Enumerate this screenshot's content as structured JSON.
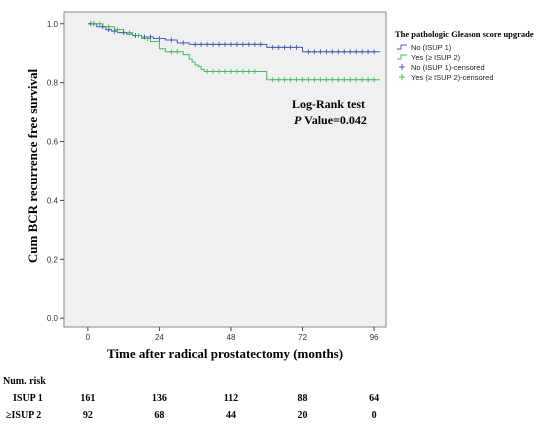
{
  "chart_data": {
    "type": "line",
    "subtype": "kaplan-meier",
    "title": "",
    "xlabel": "Time after radical prostatectomy (months)",
    "ylabel": "Cum BCR recurrence free survival",
    "xlim": [
      -8,
      100
    ],
    "ylim": [
      -0.03,
      1.04
    ],
    "xticks": [
      0,
      24,
      48,
      72,
      96
    ],
    "yticks": [
      0.0,
      0.2,
      0.4,
      0.6,
      0.8,
      1.0
    ],
    "ytick_labels": [
      "0.0",
      "0.2",
      "0.4",
      "0.6",
      "0.8",
      "1.0"
    ],
    "grid": false,
    "background": "#f0f0f0",
    "legend": {
      "title": "The pathologic Gleason score upgrade",
      "placement": "top-right-outside",
      "entries": [
        {
          "label": "No (ISUP 1)",
          "marker": "step",
          "color": "#4a5bb8"
        },
        {
          "label": "Yes (≥ ISUP 2)",
          "marker": "step",
          "color": "#3cbf5a"
        },
        {
          "label": "No (ISUP 1)-censored",
          "marker": "plus",
          "color": "#4a5bb8"
        },
        {
          "label": "Yes (≥ ISUP 2)-censored",
          "marker": "plus",
          "color": "#3cbf5a"
        }
      ]
    },
    "annotation": {
      "line1": "Log-Rank test",
      "p_label": "P",
      "p_value_text": " Value=0.042"
    },
    "series": [
      {
        "name": "No (ISUP 1)",
        "color": "#4a5bb8",
        "steps": [
          [
            0,
            1.0
          ],
          [
            3,
            0.99
          ],
          [
            6,
            0.98
          ],
          [
            8,
            0.975
          ],
          [
            10,
            0.97
          ],
          [
            13,
            0.965
          ],
          [
            15,
            0.96
          ],
          [
            18,
            0.955
          ],
          [
            22,
            0.95
          ],
          [
            26,
            0.945
          ],
          [
            30,
            0.935
          ],
          [
            34,
            0.93
          ],
          [
            60,
            0.92
          ],
          [
            72,
            0.905
          ],
          [
            98,
            0.905
          ]
        ],
        "censored": [
          [
            1,
            1.0
          ],
          [
            2,
            1.0
          ],
          [
            5,
            0.99
          ],
          [
            7,
            0.98
          ],
          [
            9,
            0.975
          ],
          [
            12,
            0.97
          ],
          [
            16,
            0.96
          ],
          [
            19,
            0.955
          ],
          [
            21,
            0.955
          ],
          [
            24,
            0.95
          ],
          [
            28,
            0.945
          ],
          [
            32,
            0.935
          ],
          [
            36,
            0.93
          ],
          [
            38,
            0.93
          ],
          [
            40,
            0.93
          ],
          [
            42,
            0.93
          ],
          [
            44,
            0.93
          ],
          [
            46,
            0.93
          ],
          [
            48,
            0.93
          ],
          [
            50,
            0.93
          ],
          [
            52,
            0.93
          ],
          [
            54,
            0.93
          ],
          [
            56,
            0.93
          ],
          [
            58,
            0.93
          ],
          [
            62,
            0.92
          ],
          [
            64,
            0.92
          ],
          [
            66,
            0.92
          ],
          [
            68,
            0.92
          ],
          [
            70,
            0.92
          ],
          [
            74,
            0.905
          ],
          [
            76,
            0.905
          ],
          [
            78,
            0.905
          ],
          [
            80,
            0.905
          ],
          [
            82,
            0.905
          ],
          [
            84,
            0.905
          ],
          [
            86,
            0.905
          ],
          [
            88,
            0.905
          ],
          [
            90,
            0.905
          ],
          [
            92,
            0.905
          ],
          [
            94,
            0.905
          ],
          [
            96,
            0.905
          ]
        ]
      },
      {
        "name": "Yes (≥ ISUP 2)",
        "color": "#3cbf5a",
        "steps": [
          [
            0,
            1.0
          ],
          [
            5,
            0.99
          ],
          [
            9,
            0.98
          ],
          [
            12,
            0.97
          ],
          [
            15,
            0.96
          ],
          [
            18,
            0.95
          ],
          [
            21,
            0.94
          ],
          [
            24,
            0.915
          ],
          [
            26,
            0.905
          ],
          [
            32,
            0.895
          ],
          [
            34,
            0.88
          ],
          [
            35,
            0.87
          ],
          [
            36,
            0.86
          ],
          [
            37,
            0.855
          ],
          [
            38,
            0.845
          ],
          [
            39,
            0.838
          ],
          [
            60,
            0.81
          ],
          [
            98,
            0.81
          ]
        ],
        "censored": [
          [
            2,
            1.0
          ],
          [
            4,
            1.0
          ],
          [
            7,
            0.99
          ],
          [
            10,
            0.98
          ],
          [
            14,
            0.97
          ],
          [
            17,
            0.96
          ],
          [
            20,
            0.95
          ],
          [
            28,
            0.905
          ],
          [
            30,
            0.905
          ],
          [
            40,
            0.838
          ],
          [
            42,
            0.838
          ],
          [
            44,
            0.838
          ],
          [
            46,
            0.838
          ],
          [
            48,
            0.838
          ],
          [
            50,
            0.838
          ],
          [
            52,
            0.838
          ],
          [
            54,
            0.838
          ],
          [
            56,
            0.838
          ],
          [
            62,
            0.81
          ],
          [
            64,
            0.81
          ],
          [
            66,
            0.81
          ],
          [
            68,
            0.81
          ],
          [
            70,
            0.81
          ],
          [
            72,
            0.81
          ],
          [
            74,
            0.81
          ],
          [
            76,
            0.81
          ],
          [
            78,
            0.81
          ],
          [
            80,
            0.81
          ],
          [
            82,
            0.81
          ],
          [
            84,
            0.81
          ],
          [
            86,
            0.81
          ],
          [
            88,
            0.81
          ],
          [
            90,
            0.81
          ],
          [
            92,
            0.81
          ],
          [
            94,
            0.81
          ],
          [
            96,
            0.81
          ]
        ]
      }
    ]
  },
  "risk_table": {
    "header": "Num. risk",
    "rows": [
      {
        "label": "ISUP 1",
        "values": [
          "161",
          "136",
          "112",
          "88",
          "64"
        ]
      },
      {
        "label": "≥ISUP 2",
        "values": [
          "92",
          "68",
          "44",
          "20",
          "0"
        ]
      }
    ]
  }
}
